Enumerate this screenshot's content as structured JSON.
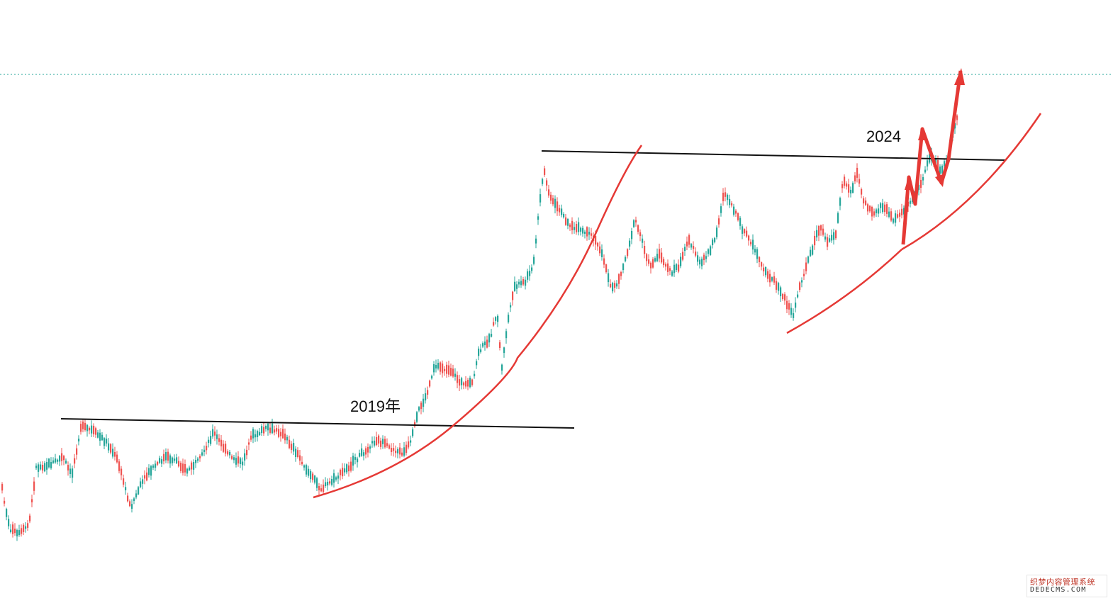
{
  "chart_data": {
    "type": "candlestick",
    "colors": {
      "up": "#26a69a",
      "down": "#ef5350",
      "trendline": "#111111",
      "curve": "#e53935",
      "projection": "#e53935",
      "dotted_level": "#26a69a"
    },
    "annotations": [
      {
        "id": "year-2019",
        "text": "2019年"
      },
      {
        "id": "year-2024",
        "text": "2024"
      }
    ],
    "features": {
      "dotted_horizontal_level": true,
      "resistance_lines": 2,
      "support_curves": 3,
      "projection_arrow": true,
      "grid": false,
      "axes_visible": false
    }
  },
  "watermark": {
    "line1": "织梦内容管理系统",
    "line2": "DEDECMS.COM"
  }
}
